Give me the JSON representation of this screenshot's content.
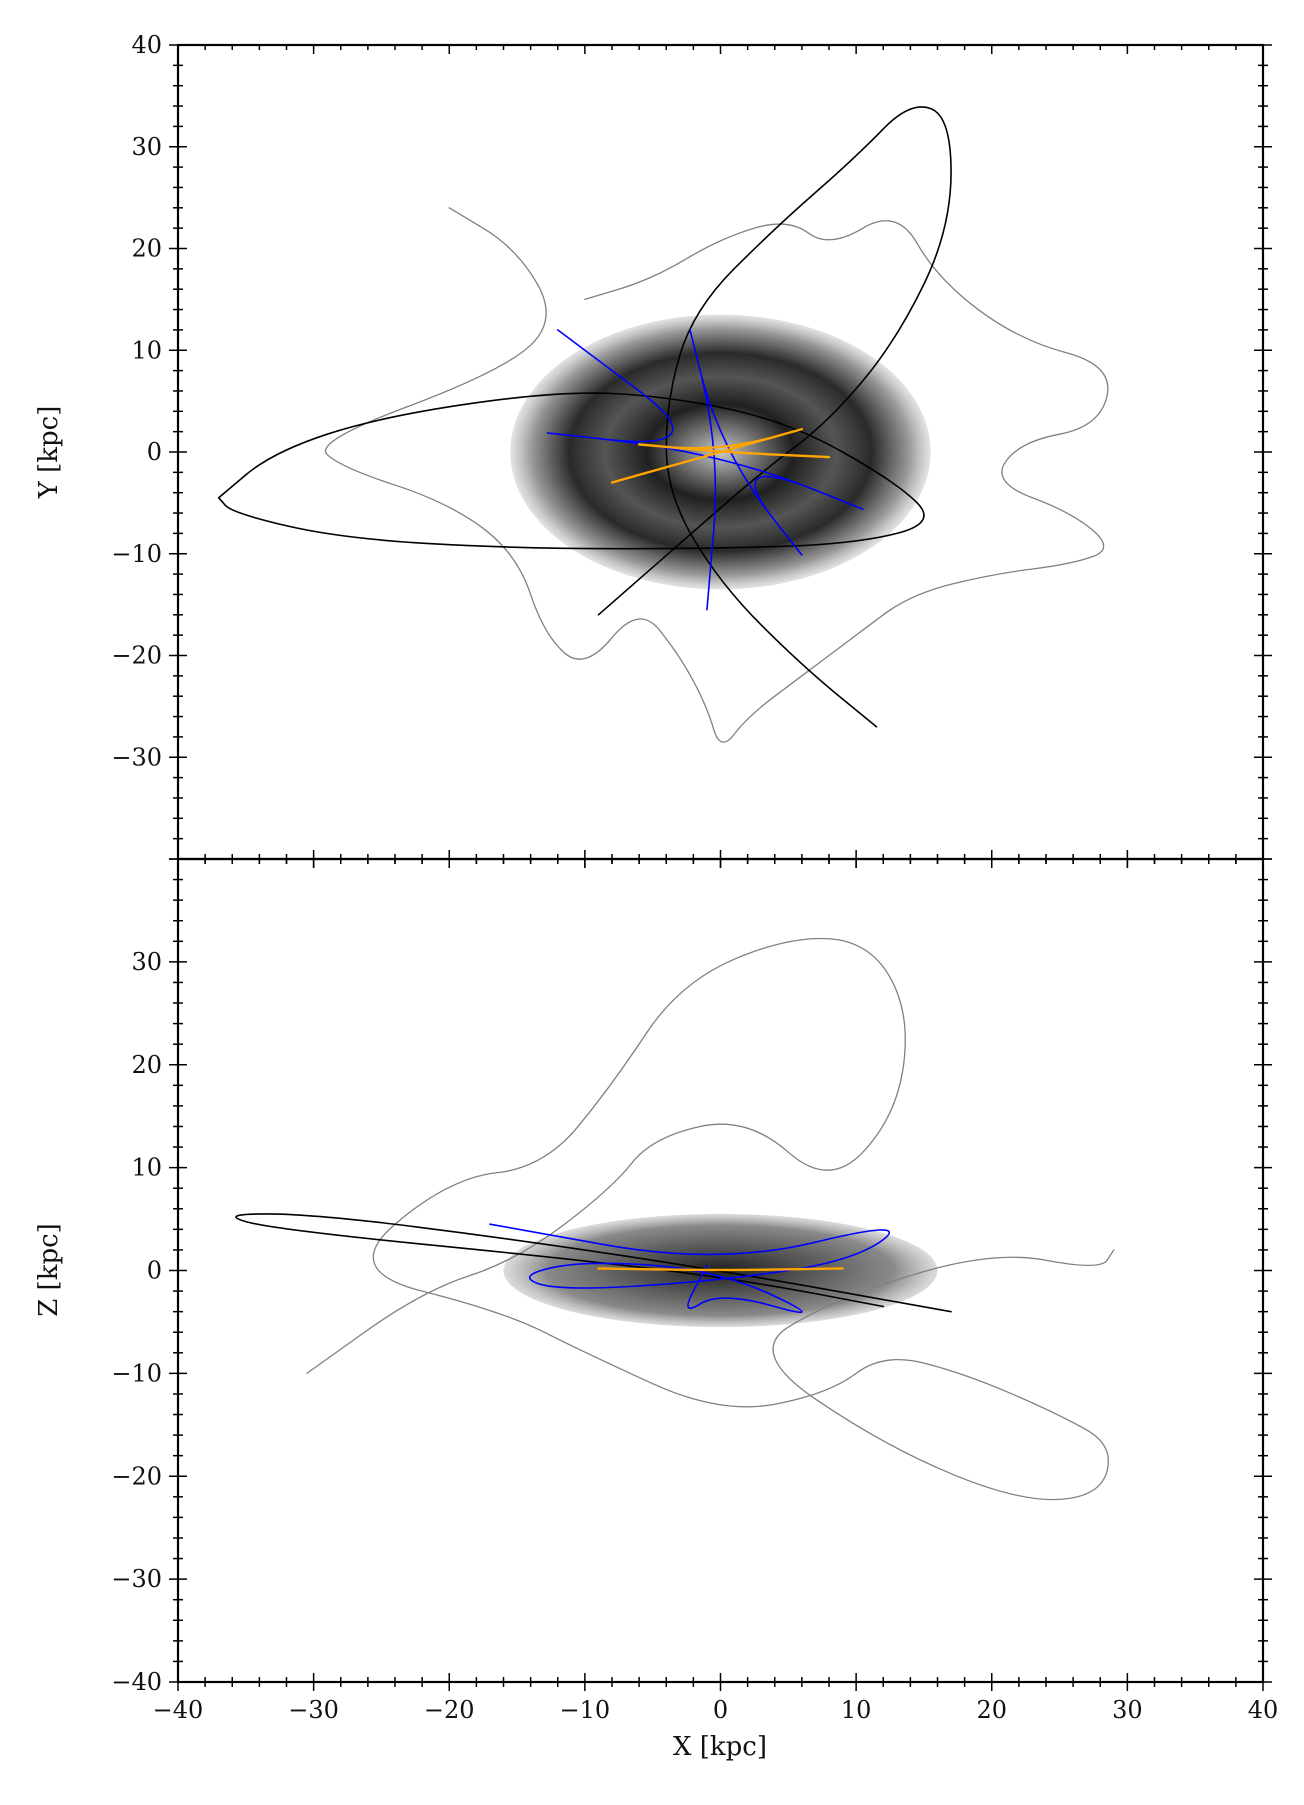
{
  "chart_data": [
    {
      "type": "scatter",
      "panel": "top",
      "title": "",
      "xlabel": "",
      "ylabel": "Y [kpc]",
      "xlim": [
        -40,
        40
      ],
      "ylim": [
        -40,
        40
      ],
      "xticks": [
        -40,
        -30,
        -20,
        -10,
        0,
        10,
        20,
        30,
        40
      ],
      "yticks": [
        -30,
        -20,
        -10,
        0,
        10,
        20,
        30,
        40
      ],
      "ytick_labels": [
        "−30",
        "−20",
        "−10",
        "0",
        "10",
        "20",
        "30",
        "40"
      ],
      "grid": false,
      "background_density": {
        "center": [
          0,
          0
        ],
        "rx": 15.5,
        "ry": 13.5,
        "colormap": "gray"
      },
      "series": [
        {
          "color": "#808080",
          "style": "many thin loop orbits around the disk",
          "points": [
            [
              -20,
              24
            ],
            [
              -15,
              20
            ],
            [
              -12,
              13
            ],
            [
              -16,
              8
            ],
            [
              -30,
              1
            ],
            [
              -28,
              -1.5
            ],
            [
              -20,
              -5
            ],
            [
              -15,
              -10
            ],
            [
              -13,
              -18
            ],
            [
              -10,
              -21.5
            ],
            [
              -6,
              -15
            ],
            [
              -3,
              -20
            ],
            [
              -1,
              -25
            ],
            [
              0,
              -29.5
            ],
            [
              2,
              -26
            ],
            [
              6,
              -22
            ],
            [
              10,
              -18
            ],
            [
              14,
              -14
            ],
            [
              20,
              -12
            ],
            [
              26,
              -11
            ],
            [
              29,
              -9.5
            ],
            [
              26,
              -6
            ],
            [
              20,
              -3
            ],
            [
              22,
              1
            ],
            [
              28,
              2.5
            ],
            [
              29,
              8.5
            ],
            [
              22,
              11
            ],
            [
              16,
              17
            ],
            [
              13,
              24
            ],
            [
              8,
              20
            ],
            [
              5,
              23
            ],
            [
              0,
              21
            ],
            [
              -5,
              17
            ],
            [
              -10,
              15
            ]
          ]
        },
        {
          "color": "#000000",
          "style": "two large orbits",
          "points": [
            [
              -37,
              -4.5
            ],
            [
              -33,
              0
            ],
            [
              -25,
              3.5
            ],
            [
              -12,
              6
            ],
            [
              -4,
              5.5
            ],
            [
              5,
              3
            ],
            [
              13,
              -3
            ],
            [
              16,
              -7
            ],
            [
              10,
              -9
            ],
            [
              0,
              -9.5
            ],
            [
              -15,
              -9.5
            ],
            [
              -28,
              -8.5
            ],
            [
              -36,
              -6
            ],
            [
              -37,
              -4.5
            ]
          ],
          "points2": [
            [
              11.5,
              -27
            ],
            [
              6,
              -21
            ],
            [
              0,
              -13
            ],
            [
              -4,
              -4
            ],
            [
              -4,
              5
            ],
            [
              -2,
              14
            ],
            [
              4,
              22
            ],
            [
              10,
              29
            ],
            [
              14,
              34.5
            ],
            [
              17,
              33
            ],
            [
              17,
              22
            ],
            [
              13,
              11
            ],
            [
              8,
              3
            ],
            [
              3,
              -2
            ],
            [
              -3,
              -9
            ],
            [
              -9,
              -16
            ]
          ]
        },
        {
          "color": "#0000ff",
          "style": "rosette orbits through center",
          "points": [
            [
              -12,
              12
            ],
            [
              0,
              0
            ],
            [
              -17,
              2.5
            ],
            [
              0,
              0
            ],
            [
              14,
              -7.5
            ],
            [
              0,
              0
            ],
            [
              8,
              -13.5
            ],
            [
              0,
              0
            ],
            [
              -3,
              16
            ],
            [
              0,
              0
            ],
            [
              -1,
              -15.5
            ]
          ]
        },
        {
          "color": "#ffa500",
          "style": "flattened bar orbit",
          "points": [
            [
              -8,
              -3
            ],
            [
              0,
              0
            ],
            [
              8,
              3
            ],
            [
              0,
              0
            ],
            [
              -8,
              1
            ],
            [
              0,
              0
            ],
            [
              8,
              -0.5
            ]
          ]
        }
      ]
    },
    {
      "type": "scatter",
      "panel": "bottom",
      "title": "",
      "xlabel": "X [kpc]",
      "ylabel": "Z [kpc]",
      "xlim": [
        -40,
        40
      ],
      "ylim": [
        -40,
        40
      ],
      "xticks": [
        -40,
        -30,
        -20,
        -10,
        0,
        10,
        20,
        30,
        40
      ],
      "xtick_labels": [
        "−40",
        "−30",
        "−20",
        "−10",
        "0",
        "10",
        "20",
        "30",
        "40"
      ],
      "yticks": [
        -40,
        -30,
        -20,
        -10,
        0,
        10,
        20,
        30
      ],
      "ytick_labels": [
        "−40",
        "−30",
        "−20",
        "−10",
        "0",
        "10",
        "20",
        "30"
      ],
      "grid": false,
      "background_density": {
        "center": [
          0,
          0
        ],
        "rx": 16,
        "ry": 5.5,
        "colormap": "gray"
      },
      "series": [
        {
          "color": "#808080",
          "style": "many thin orbits",
          "points": [
            [
              -30.5,
              -10
            ],
            [
              -22,
              -2
            ],
            [
              -15,
              1
            ],
            [
              -8,
              8
            ],
            [
              -5,
              13
            ],
            [
              2,
              15
            ],
            [
              8,
              8
            ],
            [
              13,
              15
            ],
            [
              14,
              25
            ],
            [
              11,
              32
            ],
            [
              5,
              32.5
            ],
            [
              -3,
              28
            ],
            [
              -8,
              18
            ],
            [
              -13,
              10
            ],
            [
              -20,
              9
            ],
            [
              -28,
              0
            ],
            [
              -16,
              -4
            ],
            [
              -10,
              -8
            ],
            [
              0,
              -14
            ],
            [
              8,
              -12
            ],
            [
              12,
              -8
            ],
            [
              18,
              -10
            ],
            [
              25,
              -14
            ],
            [
              29,
              -17
            ],
            [
              28,
              -22
            ],
            [
              22,
              -22.5
            ],
            [
              12,
              -17
            ],
            [
              2,
              -8
            ],
            [
              8,
              -3
            ],
            [
              20,
              2
            ],
            [
              28,
              0
            ],
            [
              29,
              2
            ]
          ]
        },
        {
          "color": "#000000",
          "style": "tilted orbit",
          "points": [
            [
              17,
              -4
            ],
            [
              0,
              0
            ],
            [
              -15,
              3
            ],
            [
              -30,
              5.5
            ],
            [
              -37,
              5.5
            ],
            [
              -33,
              4
            ],
            [
              -10,
              1
            ],
            [
              2,
              -1
            ],
            [
              12,
              -3.5
            ]
          ]
        },
        {
          "color": "#0000ff",
          "style": "tilted rosette",
          "points": [
            [
              -17,
              4.5
            ],
            [
              0,
              0.5
            ],
            [
              14,
              5
            ],
            [
              10,
              1
            ],
            [
              0,
              -1
            ],
            [
              -12,
              -2
            ],
            [
              -15,
              -0.5
            ],
            [
              -10,
              1
            ],
            [
              0,
              0
            ],
            [
              8,
              -5
            ],
            [
              0,
              -2
            ],
            [
              -3,
              -4.5
            ],
            [
              -1,
              0.5
            ]
          ]
        },
        {
          "color": "#ffa500",
          "style": "thin bar orbit",
          "points": [
            [
              -9,
              0.2
            ],
            [
              0,
              0
            ],
            [
              9,
              0.2
            ]
          ]
        }
      ]
    }
  ]
}
